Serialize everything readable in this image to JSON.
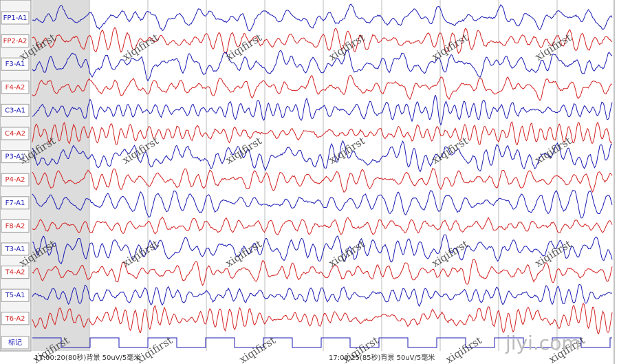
{
  "channels": [
    "FP1-A1",
    "FP2-A2",
    "F3-A1",
    "F4-A2",
    "C3-A1",
    "C4-A2",
    "P3-A1",
    "P4-A2",
    "F7-A1",
    "F8-A2",
    "T3-A1",
    "T4-A2",
    "T5-A1",
    "T6-A2"
  ],
  "marker_label": "标记",
  "footer": [
    "17:00:20(80秒)背景 50uV/5毫米",
    "17:00:25(85秒)背景 50uV/5毫米"
  ],
  "watermark": "xiqifirst",
  "logo": "jiyi.com"
}
